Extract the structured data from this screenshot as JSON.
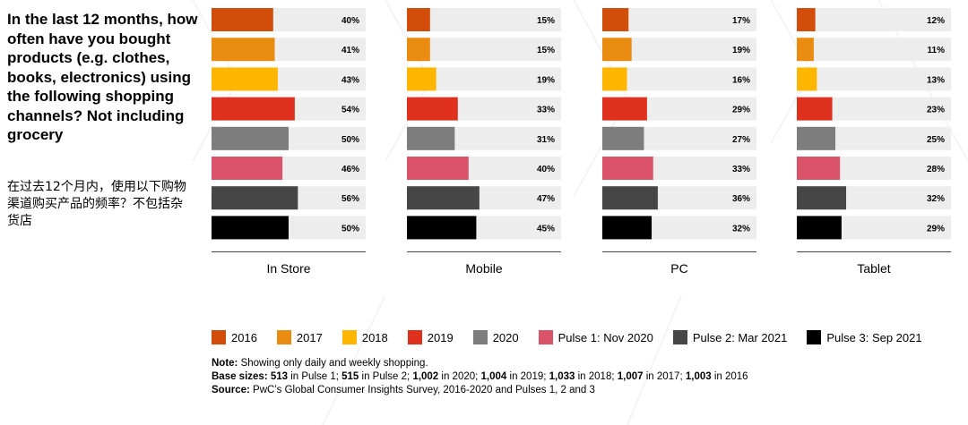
{
  "question": {
    "en": "In the last 12 months, how often have you bought products (e.g. clothes, books, electronics) using the following shopping channels? Not including grocery",
    "zh": "在过去12个月内，使用以下购物渠道购买产品的频率？不包括杂货店"
  },
  "chart_data": {
    "type": "bar",
    "orientation": "horizontal",
    "value_unit": "%",
    "xlim": [
      0,
      100
    ],
    "categories": [
      "2016",
      "2017",
      "2018",
      "2019",
      "2020",
      "Pulse 1: Nov 2020",
      "Pulse 2: Mar 2021",
      "Pulse 3: Sep 2021"
    ],
    "colors": [
      "#d24d0a",
      "#ea8c12",
      "#ffb600",
      "#e0301e",
      "#7d7d7d",
      "#db536a",
      "#464646",
      "#000000"
    ],
    "track_color": "#ededed",
    "panels": [
      {
        "name": "In Store",
        "values": [
          40,
          41,
          43,
          54,
          50,
          46,
          56,
          50
        ],
        "labels": [
          "40%",
          "41%",
          "43%",
          "54%",
          "50%",
          "46%",
          "56%",
          "50%"
        ]
      },
      {
        "name": "Mobile",
        "values": [
          15,
          15,
          19,
          33,
          31,
          40,
          47,
          45
        ],
        "labels": [
          "15%",
          "15%",
          "19%",
          "33%",
          "31%",
          "40%",
          "47%",
          "45%"
        ]
      },
      {
        "name": "PC",
        "values": [
          17,
          19,
          16,
          29,
          27,
          33,
          36,
          32
        ],
        "labels": [
          "17%",
          "19%",
          "16%",
          "29%",
          "27%",
          "33%",
          "36%",
          "32%"
        ]
      },
      {
        "name": "Tablet",
        "values": [
          12,
          11,
          13,
          23,
          25,
          28,
          32,
          29
        ],
        "labels": [
          "12%",
          "11%",
          "13%",
          "23%",
          "25%",
          "28%",
          "32%",
          "29%"
        ]
      }
    ],
    "legend": [
      "2016",
      "2017",
      "2018",
      "2019",
      "2020",
      "Pulse 1: Nov 2020",
      "Pulse 2: Mar 2021",
      "Pulse 3: Sep 2021"
    ],
    "legend_position": "bottom"
  },
  "notes": {
    "note_label": "Note:",
    "note_text": " Showing only daily and weekly shopping.",
    "base_label": "Base sizes:",
    "base_segments": [
      {
        "num": " 513",
        "text": " in Pulse 1; "
      },
      {
        "num": "515",
        "text": " in Pulse 2; "
      },
      {
        "num": "1,002",
        "text": " in 2020; "
      },
      {
        "num": "1,004",
        "text": " in 2019; "
      },
      {
        "num": "1,033",
        "text": " in 2018; "
      },
      {
        "num": "1,007",
        "text": " in 2017; "
      },
      {
        "num": "1,003",
        "text": " in 2016"
      }
    ],
    "source_label": "Source:",
    "source_text": " PwC’s Global Consumer Insights Survey, 2016-2020 and Pulses 1, 2 and 3"
  }
}
